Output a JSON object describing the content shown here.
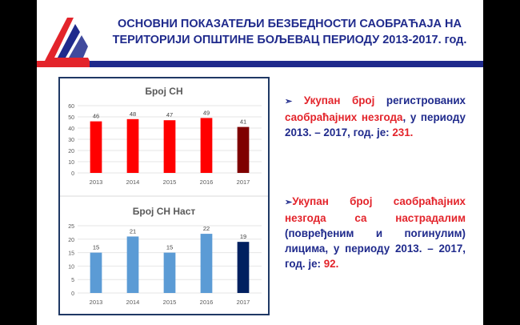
{
  "header": {
    "title_line1": "ОСНОВНИ ПОКАЗАТЕЉИ БЕЗБЕДНОСТИ САОБРАЋАЈА НА",
    "title_line2": "ТЕРИТОРИЈИ ОПШТИНЕ БОЉЕВАЦ ПЕРИОДУ 2013-2017. год."
  },
  "colors": {
    "brand_navy": "#1f2a8c",
    "brand_red": "#e3242b",
    "bar_red": "#ff0000",
    "bar_red_dark": "#7f0000",
    "bar_blue": "#5b9bd5",
    "bar_blue_dark": "#002060"
  },
  "bullets": [
    {
      "arrow": "➢",
      "p1_red": "Укупан број",
      "p2": " регистрованих ",
      "p3_red": "саобраћајних незгода",
      "p4": ", у периоду 2013. – 2017, год. је: ",
      "p5_red": "231."
    },
    {
      "arrow": "➢",
      "p1_red": "Укупан број саобраћајних незгода са настрадалим",
      "p2": " (повређеним и погинулим) лицима, у периоду 2013. – 2017, год. је: ",
      "p3_red": "92."
    }
  ],
  "chart_data": [
    {
      "type": "bar",
      "title": "Број СН",
      "categories": [
        "2013",
        "2014",
        "2015",
        "2016",
        "2017"
      ],
      "values": [
        46,
        48,
        47,
        49,
        41
      ],
      "ylim": [
        0,
        60
      ],
      "yticks": [
        0,
        10,
        20,
        30,
        40,
        50,
        60
      ],
      "grid": true,
      "legend": "none",
      "bar_colors": [
        "#ff0000",
        "#ff0000",
        "#ff0000",
        "#ff0000",
        "#7f0000"
      ]
    },
    {
      "type": "bar",
      "title": "Број СН Наст",
      "categories": [
        "2013",
        "2014",
        "2015",
        "2016",
        "2017"
      ],
      "values": [
        15,
        21,
        15,
        22,
        19
      ],
      "ylim": [
        0,
        25
      ],
      "yticks": [
        0,
        5,
        10,
        15,
        20,
        25
      ],
      "grid": true,
      "legend": "none",
      "bar_colors": [
        "#5b9bd5",
        "#5b9bd5",
        "#5b9bd5",
        "#5b9bd5",
        "#002060"
      ]
    }
  ]
}
